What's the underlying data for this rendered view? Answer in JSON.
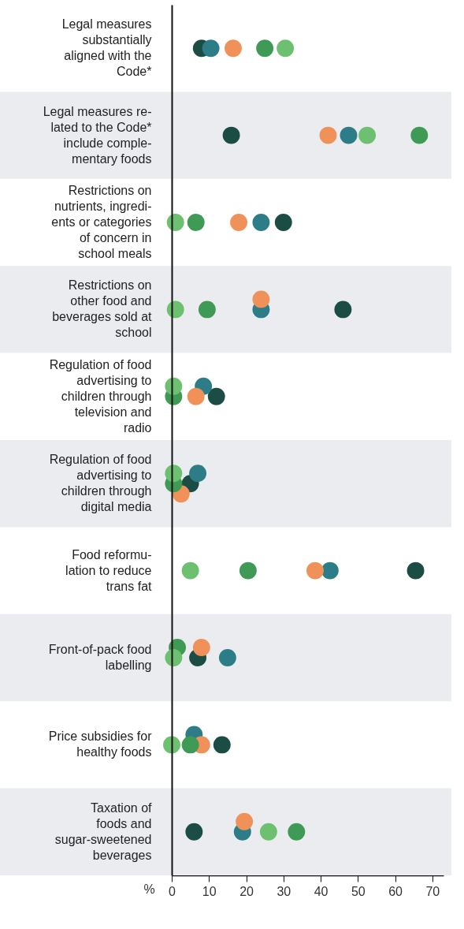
{
  "chart_data": {
    "type": "scatter",
    "orientation": "horizontal",
    "xlabel": "%",
    "marker": "circle",
    "grid": false,
    "categories": [
      "Legal measures\nsubstantially\naligned with the\nCode*",
      "Legal measures re-\nlated to the Code*\ninclude comple-\nmentary foods",
      "Restrictions on\nnutrients, ingredi-\nents or categories\nof concern in\nschool meals",
      "Restrictions on\nother food and\nbeverages sold at\nschool",
      "Regulation of food\nadvertising to\nchildren through\ntelevision and\nradio",
      "Regulation of food\nadvertising to\nchildren through\ndigital media",
      "Food reformu-\nlation to reduce\ntrans fat",
      "Front-of-pack food\nlabelling",
      "Price subsidies for\nhealthy foods",
      "Taxation of\nfoods and\nsugar-sweetened\nbeverages"
    ],
    "bands": [
      {
        "axis": "y",
        "from": "Legal measures re-\nlated to the Code*\ninclude comple-\nmentary foods",
        "to": "Legal measures re-\nlated to the Code*\ninclude comple-\nmentary foods",
        "color": "#ebecef"
      },
      {
        "axis": "y",
        "from": "Restrictions on\nother food and\nbeverages sold at\nschool",
        "to": "Restrictions on\nother food and\nbeverages sold at\nschool",
        "color": "#ebecef"
      },
      {
        "axis": "y",
        "from": "Regulation of food\nadvertising to\nchildren through\ndigital media",
        "to": "Regulation of food\nadvertising to\nchildren through\ndigital media",
        "color": "#ebecef"
      },
      {
        "axis": "y",
        "from": "Front-of-pack food\nlabelling",
        "to": "Front-of-pack food\nlabelling",
        "color": "#ebecef"
      },
      {
        "axis": "y",
        "from": "Taxation of\nfoods and\nsugar-sweetened\nbeverages",
        "to": "Taxation of\nfoods and\nsugar-sweetened\nbeverages",
        "color": "#ebecef"
      }
    ],
    "xlim": [
      0,
      73
    ],
    "xticks": [
      0,
      10,
      20,
      30,
      40,
      50,
      60,
      70
    ],
    "series": [
      {
        "color": "#1b4d45",
        "values": [
          8,
          16,
          30,
          46,
          12,
          5,
          65.5,
          7,
          13.5,
          6
        ]
      },
      {
        "color": "#2c7d87",
        "values": [
          10.5,
          47.5,
          24,
          24,
          8.5,
          7,
          42.5,
          15,
          6,
          19
        ]
      },
      {
        "color": "#f0915a",
        "values": [
          16.5,
          42,
          18,
          24,
          6.5,
          2.5,
          38.5,
          8,
          8,
          19.5
        ]
      },
      {
        "color": "#3f9a55",
        "values": [
          25,
          66.5,
          6.5,
          9.5,
          0.5,
          0.5,
          20.5,
          1.5,
          5,
          33.5
        ]
      },
      {
        "color": "#6cc070",
        "values": [
          30.5,
          52.5,
          1,
          1,
          0.5,
          0.5,
          5,
          0.5,
          0,
          26
        ]
      }
    ]
  }
}
